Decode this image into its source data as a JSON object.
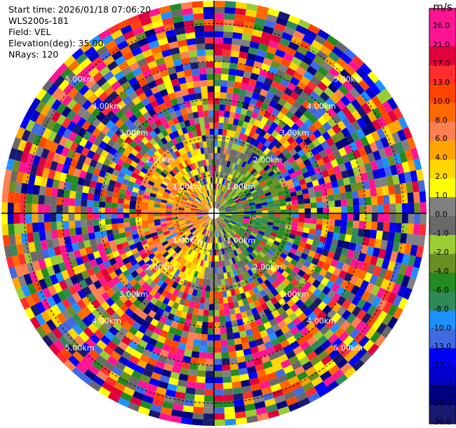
{
  "header": {
    "start_time": "Start time: 2026/01/18 07:06:20",
    "instrument": "WLS200s-181",
    "field": "Field: VEL",
    "elevation": "Elevation(deg): 35.00",
    "nrays": "NRays: 120"
  },
  "colorbar": {
    "unit": "m/s",
    "ticks": [
      "26.0",
      "21.0",
      "17.0",
      "13.0",
      "10.0",
      "8.0",
      "6.0",
      "4.0",
      "2.0",
      "1.0",
      "0.0",
      "-1.0",
      "-2.0",
      "-4.0",
      "-6.0",
      "-8.0",
      "-10.0",
      "-13.0",
      "-17.0",
      "-21.0",
      "-26.0",
      "-30.0"
    ],
    "colors": [
      "#ff1493",
      "#ff1493",
      "#e0003c",
      "#ff2d2d",
      "#ff4500",
      "#ff6a00",
      "#ff7f50",
      "#ffa500",
      "#ffd700",
      "#ffff00",
      "#808080",
      "#696969",
      "#9acd32",
      "#6b8e23",
      "#228b22",
      "#2e8b57",
      "#1e90ff",
      "#4169e1",
      "#0000ff",
      "#0000cd",
      "#000080",
      "#191970"
    ]
  },
  "chart_data": {
    "type": "ppi",
    "field": "VEL",
    "units": "m/s",
    "nrays": 120,
    "elevation_deg": 35.0,
    "ring_labels": [
      "1.00km",
      "2.00km",
      "3.00km",
      "4.00km",
      "5.00km"
    ]
  }
}
